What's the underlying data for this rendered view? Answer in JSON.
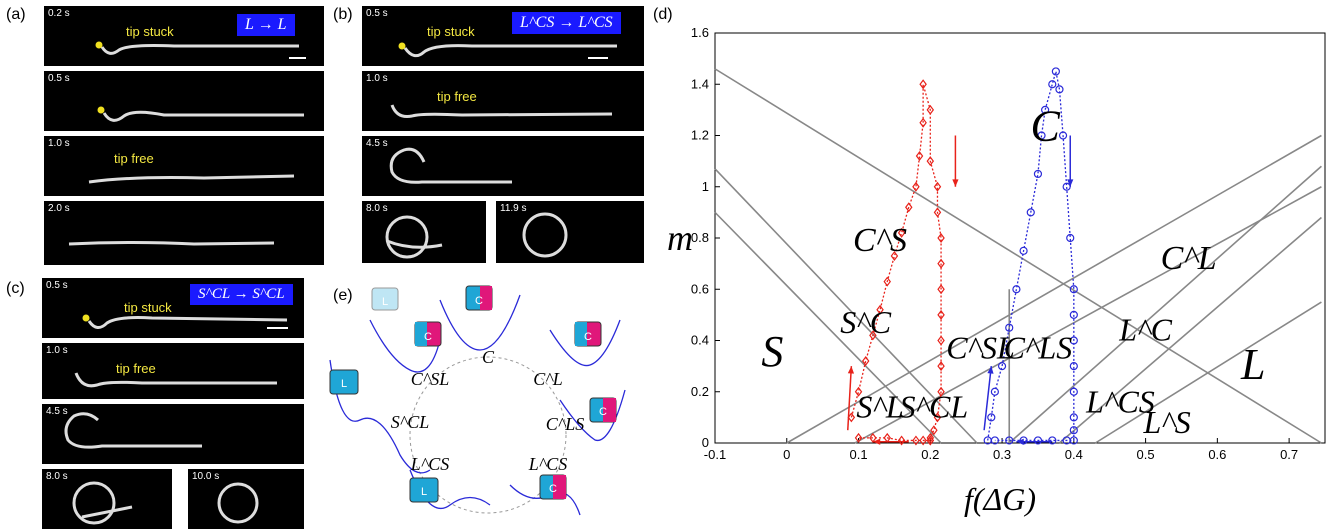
{
  "panels": {
    "a": {
      "label": "(a)",
      "frames": [
        {
          "time": "0.2 s",
          "text": "tip stuck"
        },
        {
          "time": "0.5 s",
          "text": ""
        },
        {
          "time": "1.0 s",
          "text": "tip free"
        },
        {
          "time": "2.0 s",
          "text": ""
        }
      ],
      "transition": "L → L"
    },
    "b": {
      "label": "(b)",
      "frames": [
        {
          "time": "0.5 s",
          "text": "tip stuck"
        },
        {
          "time": "1.0 s",
          "text": "tip free"
        },
        {
          "time": "4.5 s",
          "text": ""
        },
        {
          "time": "8.0 s",
          "text": ""
        },
        {
          "time": "11.9 s",
          "text": ""
        }
      ],
      "transition": "L^CS → L^CS"
    },
    "c": {
      "label": "(c)",
      "frames": [
        {
          "time": "0.5 s",
          "text": "tip stuck"
        },
        {
          "time": "1.0 s",
          "text": "tip free"
        },
        {
          "time": "4.5 s",
          "text": ""
        },
        {
          "time": "8.0 s",
          "text": ""
        },
        {
          "time": "10.0 s",
          "text": ""
        }
      ],
      "transition": "S^CL → S^CL"
    },
    "d": {
      "label": "(d)"
    },
    "e": {
      "label": "(e)",
      "nodes": [
        "C",
        "C^L",
        "C^LS",
        "L^CS",
        "S^CL",
        "C^SL"
      ],
      "cups": [
        "L",
        "C",
        "C",
        "C",
        "L",
        "L",
        "C",
        "C"
      ]
    }
  },
  "colors": {
    "red": "#e8221a",
    "blue": "#2a2ad8",
    "region_line": "#888888",
    "title_box": "#1a1aff",
    "frame_text": "#f4e842"
  },
  "chart_data": {
    "type": "line",
    "xlabel": "f(ΔG)",
    "ylabel": "m",
    "xlim": [
      -0.1,
      0.75
    ],
    "ylim": [
      0,
      1.6
    ],
    "xticks": [
      "-0.1",
      "0",
      "0.1",
      "0.2",
      "0.3",
      "0.4",
      "0.5",
      "0.6",
      "0.7"
    ],
    "yticks": [
      "0",
      "0.2",
      "0.4",
      "0.6",
      "0.8",
      "1",
      "1.2",
      "1.4",
      "1.6"
    ],
    "boundary_lines": [
      {
        "x1": -0.1,
        "y1": 1.46,
        "x2": 0.745,
        "y2": 0.0
      },
      {
        "x1": -0.1,
        "y1": 1.07,
        "x2": 0.265,
        "y2": 0.0
      },
      {
        "x1": -0.1,
        "y1": 0.9,
        "x2": 0.215,
        "y2": 0.0
      },
      {
        "x1": 0.0,
        "y1": 0.0,
        "x2": 0.745,
        "y2": 1.2
      },
      {
        "x1": 0.095,
        "y1": 0.0,
        "x2": 0.745,
        "y2": 1.0
      },
      {
        "x1": 0.31,
        "y1": 0.0,
        "x2": 0.745,
        "y2": 1.08
      },
      {
        "x1": 0.38,
        "y1": 0.0,
        "x2": 0.745,
        "y2": 0.88
      },
      {
        "x1": 0.43,
        "y1": 0.0,
        "x2": 0.745,
        "y2": 0.55
      },
      {
        "x1": 0.31,
        "y1": 0.0,
        "x2": 0.31,
        "y2": 0.6
      }
    ],
    "series": [
      {
        "color": "#e8221a",
        "x": [
          0.09,
          0.1,
          0.11,
          0.12,
          0.13,
          0.14,
          0.15,
          0.16,
          0.17,
          0.18,
          0.185,
          0.19,
          0.19,
          0.2,
          0.2,
          0.21,
          0.21,
          0.215,
          0.215,
          0.215,
          0.215,
          0.215,
          0.215,
          0.215,
          0.21,
          0.205,
          0.2,
          0.2,
          0.2,
          0.19,
          0.18,
          0.16,
          0.14,
          0.12,
          0.1
        ],
        "y": [
          0.1,
          0.2,
          0.32,
          0.42,
          0.52,
          0.63,
          0.73,
          0.82,
          0.92,
          1.0,
          1.12,
          1.25,
          1.4,
          1.3,
          1.1,
          1.0,
          0.9,
          0.8,
          0.7,
          0.6,
          0.5,
          0.4,
          0.3,
          0.2,
          0.1,
          0.05,
          0.02,
          0.01,
          0.01,
          0.01,
          0.01,
          0.01,
          0.02,
          0.02,
          0.02
        ]
      },
      {
        "color": "#2a2ad8",
        "x": [
          0.28,
          0.285,
          0.29,
          0.3,
          0.31,
          0.32,
          0.33,
          0.34,
          0.35,
          0.355,
          0.36,
          0.37,
          0.375,
          0.38,
          0.385,
          0.39,
          0.395,
          0.4,
          0.4,
          0.4,
          0.4,
          0.4,
          0.4,
          0.4,
          0.4,
          0.39,
          0.37,
          0.35,
          0.33,
          0.31,
          0.29
        ],
        "y": [
          0.01,
          0.1,
          0.2,
          0.3,
          0.45,
          0.6,
          0.75,
          0.9,
          1.05,
          1.2,
          1.3,
          1.4,
          1.45,
          1.38,
          1.2,
          1.0,
          0.8,
          0.6,
          0.5,
          0.4,
          0.3,
          0.2,
          0.1,
          0.05,
          0.01,
          0.01,
          0.01,
          0.01,
          0.01,
          0.01,
          0.01
        ]
      }
    ],
    "annotations": [
      "C",
      "C^S",
      "C^L",
      "S",
      "S^C",
      "S^L",
      "S^CL",
      "C^SL",
      "C^LS",
      "L^C",
      "L",
      "L^CS",
      "L^S"
    ]
  }
}
